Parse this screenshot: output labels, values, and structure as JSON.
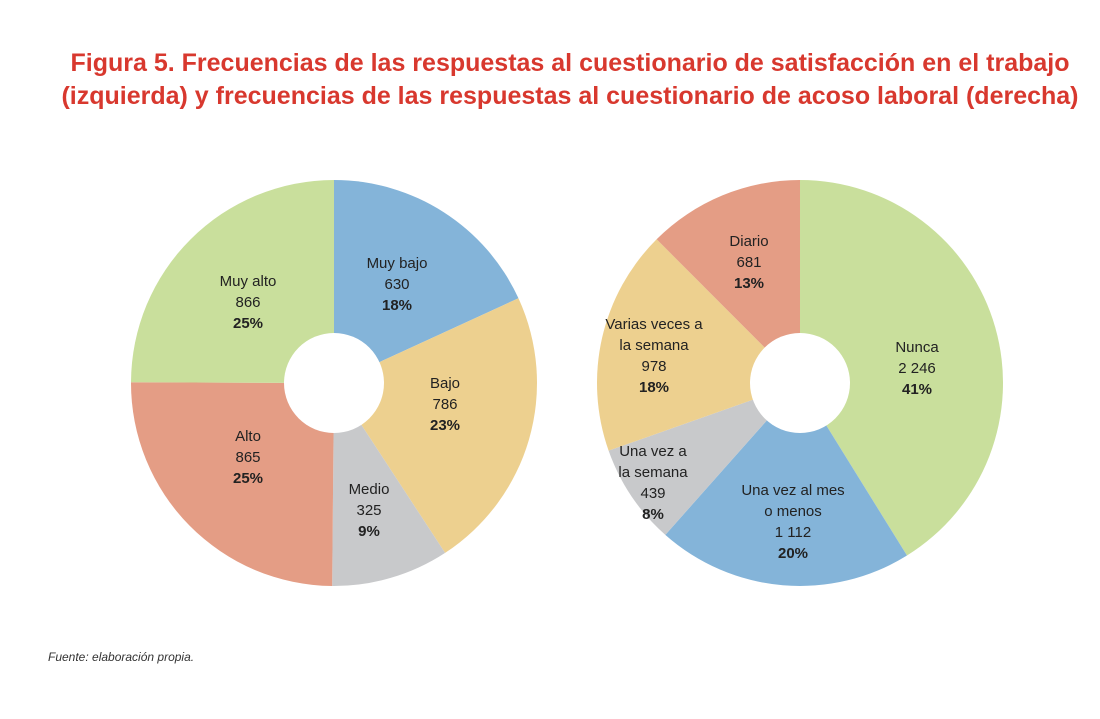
{
  "title": {
    "line1": "Figura 5. Frecuencias de las respuestas al cuestionario de satisfacción en el trabajo",
    "line2": "(izquierda) y frecuencias de las respuestas al cuestionario de acoso laboral (derecha)"
  },
  "source": "Fuente: elaboración propia.",
  "chart_data": [
    {
      "type": "pie",
      "title": "",
      "slices": [
        {
          "label": [
            "Muy bajo"
          ],
          "value": 630,
          "value_text": "630",
          "percent": "18%",
          "color": "#84b4d9"
        },
        {
          "label": [
            "Bajo"
          ],
          "value": 786,
          "value_text": "786",
          "percent": "23%",
          "color": "#edd08f"
        },
        {
          "label": [
            "Medio"
          ],
          "value": 325,
          "value_text": "325",
          "percent": "9%",
          "color": "#c8c9cb"
        },
        {
          "label": [
            "Alto"
          ],
          "value": 865,
          "value_text": "865",
          "percent": "25%",
          "color": "#e49d85"
        },
        {
          "label": [
            "Muy alto"
          ],
          "value": 866,
          "value_text": "866",
          "percent": "25%",
          "color": "#c9df9c"
        }
      ]
    },
    {
      "type": "pie",
      "title": "",
      "slices": [
        {
          "label": [
            "Nunca"
          ],
          "value": 2246,
          "value_text": "2 246",
          "percent": "41%",
          "color": "#c9df9c"
        },
        {
          "label": [
            "Una vez al mes",
            "o menos"
          ],
          "value": 1112,
          "value_text": "1 112",
          "percent": "20%",
          "color": "#84b4d9"
        },
        {
          "label": [
            "Una vez a",
            "la semana"
          ],
          "value": 439,
          "value_text": "439",
          "percent": "8%",
          "color": "#c8c9cb"
        },
        {
          "label": [
            "Varias veces a",
            "la semana"
          ],
          "value": 978,
          "value_text": "978",
          "percent": "18%",
          "color": "#edd08f"
        },
        {
          "label": [
            "Diario"
          ],
          "value": 681,
          "value_text": "681",
          "percent": "13%",
          "color": "#e49d85"
        }
      ]
    }
  ]
}
